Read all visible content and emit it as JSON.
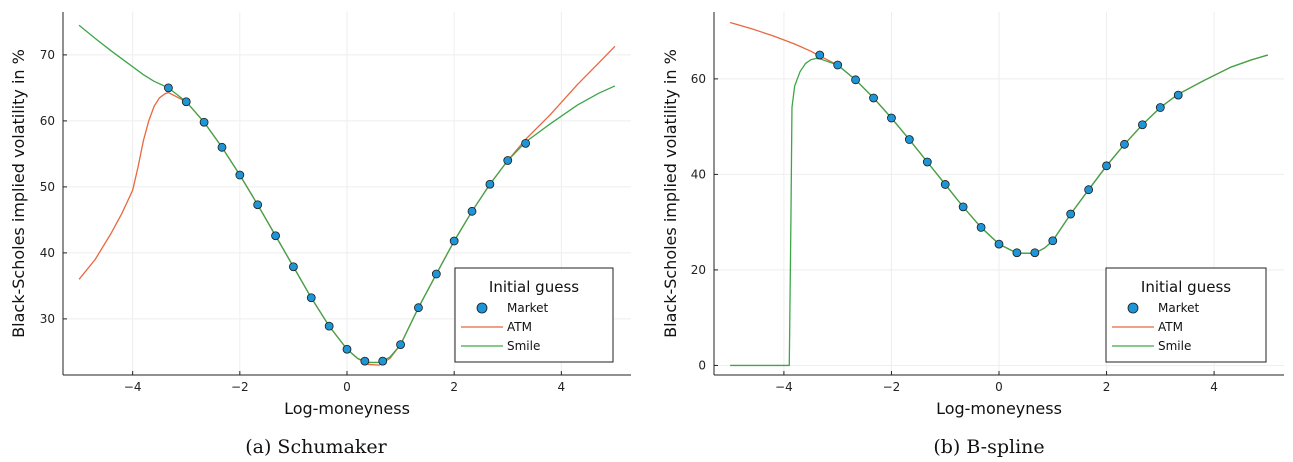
{
  "colors": {
    "market": "#1f95d6",
    "atm": "#e8683f",
    "smile": "#3da64a",
    "grid": "#eeeeee",
    "axis": "#222222"
  },
  "chart_data": [
    {
      "type": "line",
      "caption": "(a)  Schumaker",
      "xlabel": "Log-moneyness",
      "ylabel": "Black-Scholes implied volatility in %",
      "xlim": [
        -5.3,
        5.3
      ],
      "ylim": [
        21.5,
        76.5
      ],
      "xticks": [
        -4,
        -2,
        0,
        2,
        4
      ],
      "xtick_labels": [
        "−4",
        "−2",
        "0",
        "2",
        "4"
      ],
      "yticks": [
        30,
        40,
        50,
        60,
        70
      ],
      "ytick_labels": [
        "30",
        "40",
        "50",
        "60",
        "70"
      ],
      "grid": true,
      "legend": {
        "title": "Initial guess",
        "position": "bottom-right",
        "entries": [
          "Market",
          "ATM",
          "Smile"
        ]
      },
      "series": [
        {
          "name": "Market",
          "kind": "scatter",
          "x": [
            -3.333,
            -3.0,
            -2.667,
            -2.333,
            -2.0,
            -1.667,
            -1.333,
            -1.0,
            -0.667,
            -0.333,
            0.0,
            0.333,
            0.667,
            1.0,
            1.333,
            1.667,
            2.0,
            2.333,
            2.667,
            3.0,
            3.333
          ],
          "y": [
            65.0,
            62.9,
            59.8,
            56.0,
            51.8,
            47.3,
            42.6,
            37.9,
            33.2,
            28.9,
            25.4,
            23.6,
            23.6,
            26.1,
            31.7,
            36.8,
            41.8,
            46.3,
            50.4,
            54.0,
            56.6
          ]
        },
        {
          "name": "ATM",
          "kind": "line",
          "x": [
            -5.0,
            -4.7,
            -4.4,
            -4.2,
            -4.0,
            -3.9,
            -3.8,
            -3.7,
            -3.6,
            -3.5,
            -3.4,
            -3.333,
            -3.0,
            -2.667,
            -2.333,
            -2.0,
            -1.667,
            -1.333,
            -1.0,
            -0.667,
            -0.333,
            0.0,
            0.2,
            0.4,
            0.6,
            0.8,
            1.0,
            1.333,
            1.667,
            2.0,
            2.333,
            2.667,
            3.0,
            3.333,
            3.8,
            4.3,
            4.7,
            5.0
          ],
          "y": [
            36.0,
            39.0,
            43.0,
            46.0,
            49.5,
            53.0,
            57.0,
            60.0,
            62.2,
            63.5,
            64.1,
            64.3,
            62.9,
            59.8,
            56.0,
            51.8,
            47.3,
            42.6,
            37.9,
            33.2,
            28.9,
            25.4,
            24.0,
            23.1,
            23.0,
            24.0,
            26.1,
            31.7,
            36.8,
            41.8,
            46.3,
            50.4,
            54.0,
            57.2,
            61.0,
            65.5,
            68.8,
            71.3
          ]
        },
        {
          "name": "Smile",
          "kind": "line",
          "x": [
            -5.0,
            -4.7,
            -4.4,
            -4.1,
            -3.8,
            -3.6,
            -3.333,
            -3.0,
            -2.667,
            -2.333,
            -2.0,
            -1.667,
            -1.333,
            -1.0,
            -0.667,
            -0.333,
            0.0,
            0.2,
            0.4,
            0.6,
            0.8,
            1.0,
            1.333,
            1.667,
            2.0,
            2.333,
            2.667,
            3.0,
            3.333,
            3.8,
            4.3,
            4.7,
            5.0
          ],
          "y": [
            74.5,
            72.5,
            70.6,
            68.8,
            67.0,
            66.0,
            65.0,
            62.9,
            59.8,
            56.0,
            51.8,
            47.3,
            42.6,
            37.9,
            33.2,
            28.9,
            25.4,
            24.0,
            23.4,
            23.4,
            24.2,
            26.1,
            31.7,
            36.8,
            41.8,
            46.3,
            50.4,
            54.0,
            56.8,
            59.6,
            62.4,
            64.2,
            65.3
          ]
        }
      ]
    },
    {
      "type": "line",
      "caption": "(b)  B-spline",
      "xlabel": "Log-moneyness",
      "ylabel": "Black-Scholes implied volatility in %",
      "xlim": [
        -5.3,
        5.3
      ],
      "ylim": [
        -2,
        74
      ],
      "xticks": [
        -4,
        -2,
        0,
        2,
        4
      ],
      "xtick_labels": [
        "−4",
        "−2",
        "0",
        "2",
        "4"
      ],
      "yticks": [
        0,
        20,
        40,
        60
      ],
      "ytick_labels": [
        "0",
        "20",
        "40",
        "60"
      ],
      "grid": true,
      "legend": {
        "title": "Initial guess",
        "position": "bottom-right",
        "entries": [
          "Market",
          "ATM",
          "Smile"
        ]
      },
      "series": [
        {
          "name": "Market",
          "kind": "scatter",
          "x": [
            -3.333,
            -3.0,
            -2.667,
            -2.333,
            -2.0,
            -1.667,
            -1.333,
            -1.0,
            -0.667,
            -0.333,
            0.0,
            0.333,
            0.667,
            1.0,
            1.333,
            1.667,
            2.0,
            2.333,
            2.667,
            3.0,
            3.333
          ],
          "y": [
            65.0,
            62.9,
            59.8,
            56.0,
            51.8,
            47.3,
            42.6,
            37.9,
            33.2,
            28.9,
            25.4,
            23.6,
            23.6,
            26.1,
            31.7,
            36.8,
            41.8,
            46.3,
            50.4,
            54.0,
            56.6
          ]
        },
        {
          "name": "ATM",
          "kind": "line",
          "x": [
            -5.0,
            -4.6,
            -4.2,
            -3.8,
            -3.5,
            -3.333,
            -3.0,
            -2.667,
            -2.333,
            -2.0,
            -1.667,
            -1.333,
            -1.0,
            -0.667,
            -0.333,
            0.0,
            0.333,
            0.667,
            0.85,
            1.0,
            1.333,
            1.667,
            2.0,
            2.333,
            2.667,
            3.0,
            3.333,
            3.8,
            4.3,
            4.7,
            5.0
          ],
          "y": [
            71.8,
            70.5,
            69.0,
            67.3,
            65.8,
            64.8,
            62.9,
            59.8,
            56.0,
            51.8,
            47.3,
            42.6,
            37.9,
            33.2,
            28.9,
            25.4,
            23.5,
            23.5,
            24.6,
            26.1,
            31.7,
            36.8,
            41.8,
            46.3,
            50.4,
            54.0,
            56.8,
            59.6,
            62.4,
            64.0,
            65.0
          ]
        },
        {
          "name": "Smile",
          "kind": "line",
          "x": [
            -5.0,
            -4.5,
            -4.0,
            -3.9,
            -3.87,
            -3.85,
            -3.8,
            -3.7,
            -3.6,
            -3.5,
            -3.4,
            -3.333,
            -3.0,
            -2.667,
            -2.333,
            -2.0,
            -1.667,
            -1.333,
            -1.0,
            -0.667,
            -0.333,
            0.0,
            0.333,
            0.667,
            0.85,
            1.0,
            1.333,
            1.667,
            2.0,
            2.333,
            2.667,
            3.0,
            3.333,
            3.8,
            4.3,
            4.7,
            5.0
          ],
          "y": [
            0.0,
            0.0,
            0.0,
            0.0,
            30.0,
            54.0,
            58.5,
            61.5,
            63.2,
            64.0,
            64.3,
            64.2,
            62.9,
            59.8,
            56.0,
            51.8,
            47.3,
            42.6,
            37.9,
            33.2,
            28.9,
            25.4,
            23.5,
            23.5,
            24.6,
            26.1,
            31.7,
            36.8,
            41.8,
            46.3,
            50.4,
            54.0,
            56.8,
            59.6,
            62.4,
            64.0,
            65.0
          ]
        }
      ]
    }
  ]
}
